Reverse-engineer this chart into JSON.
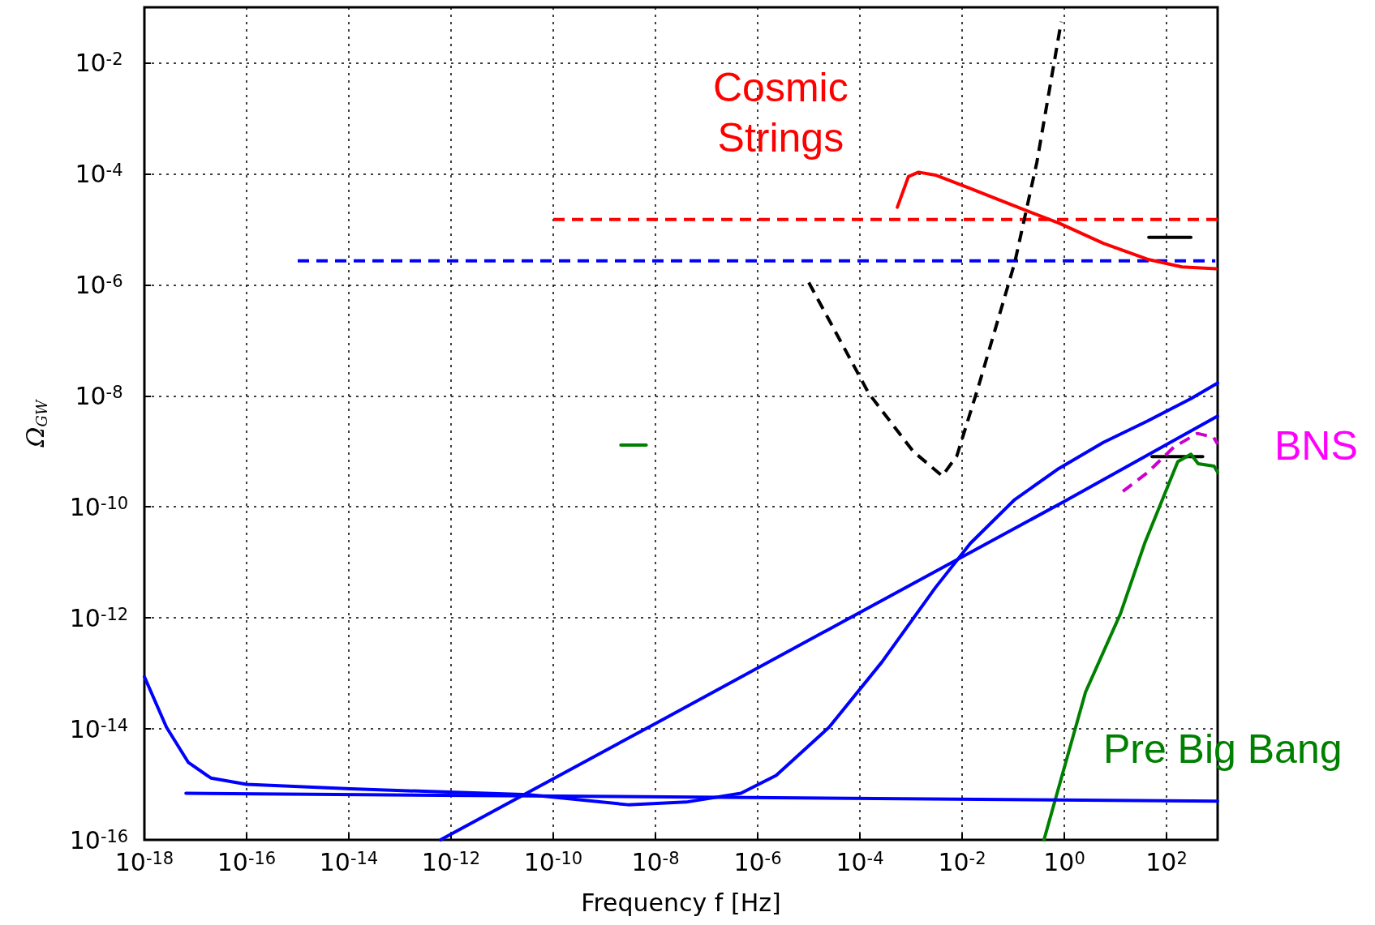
{
  "chart_data": {
    "type": "line",
    "xlabel": "Frequency f [Hz]",
    "ylabel": "Ω$_{GW}$",
    "log": "xy",
    "grid": true,
    "legend": false,
    "marker": "none",
    "xlim": [
      1e-18,
      1000
    ],
    "ylim": [
      1e-16,
      0.1
    ],
    "xticks": [
      {
        "value": 1e-18,
        "label": "10$^{-18}$"
      },
      {
        "value": 1e-16,
        "label": "10$^{-16}$"
      },
      {
        "value": 1e-14,
        "label": "10$^{-14}$"
      },
      {
        "value": 1e-12,
        "label": "10$^{-12}$"
      },
      {
        "value": 1e-10,
        "label": "10$^{-10}$"
      },
      {
        "value": 1e-08,
        "label": "10$^{-8}$"
      },
      {
        "value": 1e-06,
        "label": "10$^{-6}$"
      },
      {
        "value": 0.0001,
        "label": "10$^{-4}$"
      },
      {
        "value": 0.01,
        "label": "10$^{-2}$"
      },
      {
        "value": 1,
        "label": "10$^{0}$"
      },
      {
        "value": 100,
        "label": "10$^{2}$"
      }
    ],
    "yticks": [
      {
        "value": 1e-16,
        "label": "10$^{-16}$"
      },
      {
        "value": 1e-14,
        "label": "10$^{-14}$"
      },
      {
        "value": 1e-12,
        "label": "10$^{-12}$"
      },
      {
        "value": 1e-10,
        "label": "10$^{-10}$"
      },
      {
        "value": 1e-08,
        "label": "10$^{-8}$"
      },
      {
        "value": 1e-06,
        "label": "10$^{-6}$"
      },
      {
        "value": 0.0001,
        "label": "10$^{-4}$"
      },
      {
        "value": 0.01,
        "label": "10$^{-2}$"
      }
    ],
    "series": [
      {
        "color": "#ff0000",
        "line_style": "dashed",
        "x": [
          1e-10,
          1000
        ],
        "values": [
          1.5e-05,
          1.5e-05
        ]
      },
      {
        "color": "#0000ff",
        "line_style": "dashed",
        "x": [
          1e-15,
          900
        ],
        "values": [
          2.7e-06,
          2.7e-06
        ]
      },
      {
        "color": "#000000",
        "line_style": "dashed",
        "x": [
          1e-05,
          0.00015,
          0.0011,
          0.0041,
          0.0079,
          0.021,
          0.107,
          0.29,
          0.87
        ],
        "values": [
          1.1e-06,
          1.1e-08,
          1e-09,
          3.6e-10,
          8.3e-10,
          1.5e-08,
          2.5e-06,
          0.00016,
          0.055
        ]
      },
      {
        "color": "#000000",
        "x": [
          45,
          300
        ],
        "values": [
          7.2e-06,
          7.2e-06
        ]
      },
      {
        "color": "#000000",
        "x": [
          52,
          510
        ],
        "values": [
          8e-10,
          8e-10
        ]
      },
      {
        "color": "#008000",
        "x": [
          2.1e-09,
          6.6e-09
        ],
        "values": [
          1.3e-09,
          1.3e-09
        ]
      },
      {
        "name": "Cosmic Strings",
        "color": "#ff0000",
        "x": [
          0.00054,
          0.00089,
          0.0014,
          0.003,
          0.014,
          0.11,
          0.78,
          5.8,
          42,
          200,
          930
        ],
        "values": [
          2.5e-05,
          8.9e-05,
          0.000107,
          9.5e-05,
          5.5e-05,
          2.6e-05,
          1.3e-05,
          5.6e-06,
          2.9e-06,
          2.1e-06,
          1.95e-06
        ]
      },
      {
        "name": "BNS",
        "color": "#cc00cc",
        "line_style": "dashed",
        "x": [
          14,
          42,
          140,
          400,
          830,
          1000
        ],
        "values": [
          1.9e-10,
          4.1e-10,
          1.2e-09,
          2.1e-09,
          1.8e-09,
          1.35e-09
        ]
      },
      {
        "name": "Pre Big Bang",
        "color": "#008000",
        "x": [
          0.4,
          2.6,
          12.6,
          38,
          166,
          300,
          417,
          851,
          1000
        ],
        "values": [
          1e-16,
          4.6e-14,
          1.2e-12,
          2.3e-11,
          6.5e-10,
          8.9e-10,
          6e-10,
          5.4e-10,
          4.2e-10
        ]
      },
      {
        "color": "#0000ff",
        "x": [
          1e-18,
          2.7e-18,
          7.2e-18,
          2e-17,
          1e-16,
          1.1e-14,
          3.3e-11,
          2.9e-09,
          4e-08,
          4.7e-07,
          2.3e-06,
          2.5e-05,
          0.00027,
          0.003,
          0.0145,
          0.107,
          0.78,
          5.8,
          42,
          300,
          1000
        ],
        "values": [
          8.7e-14,
          1.07e-14,
          2.5e-15,
          1.3e-15,
          1e-15,
          8.3e-16,
          6.5e-16,
          4.3e-16,
          4.8e-16,
          6.9e-16,
          1.45e-15,
          1.07e-14,
          1.6e-13,
          3.5e-12,
          2.2e-11,
          1.35e-10,
          4.9e-10,
          1.45e-09,
          3.5e-09,
          8.9e-09,
          1.7e-08
        ]
      },
      {
        "color": "#0000ff",
        "x": [
          6.2e-13,
          1e-08,
          0.0001,
          1,
          1000
        ],
        "values": [
          1e-16,
          1.25e-14,
          1.25e-12,
          1.25e-10,
          4.3e-09
        ]
      },
      {
        "color": "#0000ff",
        "x": [
          6.5e-18,
          1000
        ],
        "values": [
          6.9e-16,
          5e-16
        ]
      }
    ]
  }
}
